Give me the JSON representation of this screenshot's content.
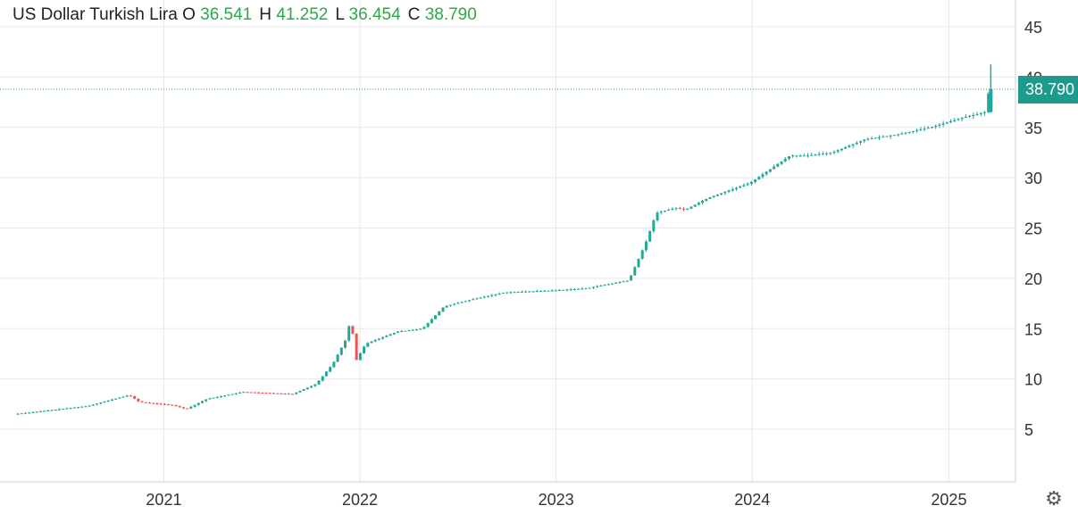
{
  "legend": {
    "name": "US Dollar Turkish Lira",
    "open_label": "O",
    "open": "36.541",
    "high_label": "H",
    "high": "41.252",
    "low_label": "L",
    "low": "36.454",
    "close_label": "C",
    "close": "38.790"
  },
  "price_tag": "38.790",
  "colors": {
    "up": "#26a69a",
    "down": "#ef5350",
    "tag": "#1e9a8c",
    "legend_values": "#2ca84a"
  },
  "settings_icon": "gear-icon",
  "chart_data": {
    "type": "candlestick",
    "title": "US Dollar Turkish Lira",
    "y_ticks": [
      "5",
      "10",
      "15",
      "20",
      "25",
      "30",
      "35",
      "40",
      "45"
    ],
    "x_ticks": [
      "2021",
      "2022",
      "2023",
      "2024",
      "2025"
    ],
    "ylim": [
      0,
      47
    ],
    "xlim": [
      "2020-04-01",
      "2025-04-10"
    ],
    "last_price": 38.79,
    "grid": true,
    "series": [
      {
        "kind": "price-path",
        "points": [
          [
            "2020-04-01",
            6.5
          ],
          [
            "2020-06-01",
            6.85
          ],
          [
            "2020-08-15",
            7.3
          ],
          [
            "2020-11-01",
            8.4
          ],
          [
            "2020-11-20",
            7.7
          ],
          [
            "2021-01-20",
            7.4
          ],
          [
            "2021-02-15",
            7.0
          ],
          [
            "2021-03-25",
            8.0
          ],
          [
            "2021-06-01",
            8.7
          ],
          [
            "2021-09-01",
            8.5
          ],
          [
            "2021-10-15",
            9.5
          ],
          [
            "2021-11-15",
            11.5
          ],
          [
            "2021-12-10",
            14.0
          ],
          [
            "2021-12-20",
            16.5
          ],
          [
            "2021-12-25",
            11.5
          ],
          [
            "2022-01-15",
            13.5
          ],
          [
            "2022-03-15",
            14.7
          ],
          [
            "2022-05-01",
            15.0
          ],
          [
            "2022-06-10",
            17.2
          ],
          [
            "2022-08-01",
            17.9
          ],
          [
            "2022-10-01",
            18.6
          ],
          [
            "2023-01-01",
            18.8
          ],
          [
            "2023-03-01",
            19.0
          ],
          [
            "2023-05-20",
            19.8
          ],
          [
            "2023-06-20",
            23.5
          ],
          [
            "2023-07-10",
            26.5
          ],
          [
            "2023-08-15",
            27.0
          ],
          [
            "2023-09-01",
            26.8
          ],
          [
            "2023-10-15",
            28.0
          ],
          [
            "2024-01-01",
            29.5
          ],
          [
            "2024-03-15",
            32.2
          ],
          [
            "2024-04-15",
            32.2
          ],
          [
            "2024-06-01",
            32.5
          ],
          [
            "2024-08-01",
            33.8
          ],
          [
            "2024-10-01",
            34.3
          ],
          [
            "2024-12-01",
            35.0
          ],
          [
            "2025-02-01",
            36.0
          ],
          [
            "2025-03-15",
            36.54
          ],
          [
            "2025-03-20",
            38.79
          ]
        ]
      }
    ]
  }
}
